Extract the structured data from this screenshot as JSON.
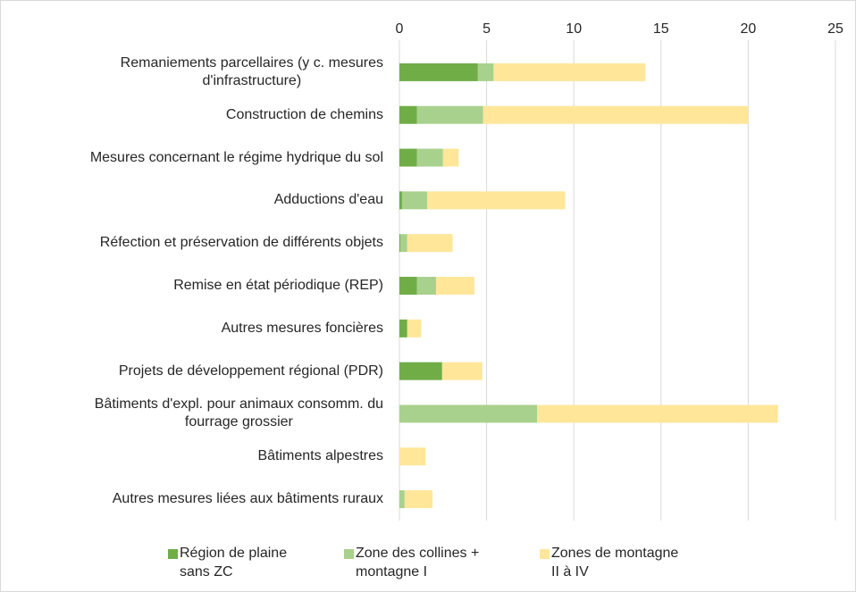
{
  "chart_data": {
    "type": "stacked-barh",
    "categories": [
      "Remaniements parcellaires (y c. mesures\nd'infrastructure)",
      "Construction de chemins",
      "Mesures concernant le régime hydrique du sol",
      "Adductions d'eau",
      "Réfection et préservation de différents objets",
      "Remise en état périodique (REP)",
      "Autres mesures foncières",
      "Projets de développement régional (PDR)",
      "Bâtiments d'expl. pour animaux consomm. du\nfourrage grossier",
      "Bâtiments alpestres",
      "Autres mesures liées aux bâtiments ruraux"
    ],
    "series": [
      {
        "name": "Région de plaine\nsans ZC",
        "color": "#70ad47",
        "values": [
          4.5,
          1.0,
          1.0,
          0.15,
          0.05,
          1.0,
          0.45,
          2.45,
          0,
          0,
          0
        ]
      },
      {
        "name": "Zone des collines +\nmontagne I",
        "color": "#a9d18e",
        "values": [
          0.9,
          3.8,
          1.5,
          1.45,
          0.4,
          1.1,
          0,
          0,
          7.9,
          0,
          0.3
        ]
      },
      {
        "name": "Zones de montagne\nII à IV",
        "color": "#ffe699",
        "values": [
          8.7,
          15.2,
          0.9,
          7.9,
          2.6,
          2.2,
          0.8,
          2.3,
          13.8,
          1.5,
          1.6
        ]
      }
    ],
    "xlim": [
      0,
      25
    ],
    "xticks": [
      0,
      5,
      10,
      15,
      20,
      25
    ],
    "grid": true
  }
}
